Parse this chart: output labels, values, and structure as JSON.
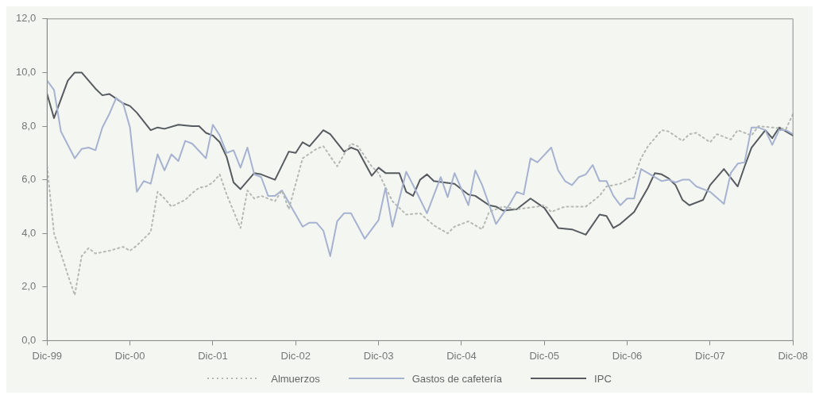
{
  "chart_data": {
    "type": "line",
    "legend": "bottom",
    "grid": false,
    "marker": "none",
    "xlim": [
      "1999-12",
      "2008-12"
    ],
    "xticks": [
      {
        "value": "1999-12",
        "label": "Dic-99"
      },
      {
        "value": "2000-12",
        "label": "Dic-00"
      },
      {
        "value": "2001-12",
        "label": "Dic-01"
      },
      {
        "value": "2002-12",
        "label": "Dic-02"
      },
      {
        "value": "2003-12",
        "label": "Dic-03"
      },
      {
        "value": "2004-12",
        "label": "Dic-04"
      },
      {
        "value": "2005-12",
        "label": "Dic-05"
      },
      {
        "value": "2006-12",
        "label": "Dic-06"
      },
      {
        "value": "2007-12",
        "label": "Dic-07"
      },
      {
        "value": "2008-12",
        "label": "Dic-08"
      }
    ],
    "ylim": [
      0,
      12
    ],
    "yticks": [
      {
        "value": 0,
        "label": "0,0"
      },
      {
        "value": 2,
        "label": "2,0"
      },
      {
        "value": 4,
        "label": "4,0"
      },
      {
        "value": 6,
        "label": "6,0"
      },
      {
        "value": 8,
        "label": "8,0"
      },
      {
        "value": 10,
        "label": "10,0"
      },
      {
        "value": 12,
        "label": "12,0"
      }
    ],
    "series": [
      {
        "name": "Almuerzos",
        "color": "#b4b9b4",
        "line_style": "dotted",
        "x": [
          "1999-12",
          "2000-01",
          "2000-02",
          "2000-03",
          "2000-04",
          "2000-05",
          "2000-06",
          "2000-07",
          "2000-09",
          "2000-11",
          "2000-12",
          "2001-01",
          "2001-03",
          "2001-04",
          "2001-05",
          "2001-06",
          "2001-08",
          "2001-09",
          "2001-10",
          "2001-11",
          "2001-12",
          "2002-01",
          "2002-02",
          "2002-04",
          "2002-05",
          "2002-06",
          "2002-07",
          "2002-09",
          "2002-10",
          "2002-11",
          "2003-01",
          "2003-03",
          "2003-04",
          "2003-06",
          "2003-07",
          "2003-08",
          "2003-09",
          "2003-11",
          "2003-12",
          "2004-02",
          "2004-04",
          "2004-06",
          "2004-08",
          "2004-10",
          "2004-11",
          "2005-01",
          "2005-03",
          "2005-04",
          "2005-06",
          "2005-08",
          "2005-11",
          "2005-12",
          "2006-01",
          "2006-03",
          "2006-05",
          "2006-06",
          "2006-08",
          "2006-09",
          "2006-11",
          "2007-01",
          "2007-02",
          "2007-03",
          "2007-05",
          "2007-06",
          "2007-08",
          "2007-09",
          "2007-10",
          "2007-12",
          "2008-01",
          "2008-03",
          "2008-04",
          "2008-06",
          "2008-07",
          "2008-09",
          "2008-11",
          "2008-12"
        ],
        "values": [
          6.5,
          4.0,
          3.25,
          2.45,
          1.7,
          3.15,
          3.45,
          3.25,
          3.35,
          3.5,
          3.35,
          3.55,
          4.05,
          5.55,
          5.3,
          5.0,
          5.25,
          5.5,
          5.7,
          5.75,
          5.9,
          6.2,
          5.45,
          4.2,
          5.6,
          5.3,
          5.4,
          5.2,
          5.6,
          4.9,
          6.8,
          7.15,
          7.25,
          6.5,
          6.95,
          7.35,
          7.25,
          6.5,
          6.25,
          5.2,
          4.7,
          4.75,
          4.3,
          4.0,
          4.25,
          4.45,
          4.15,
          4.8,
          5.0,
          4.9,
          5.0,
          5.05,
          4.8,
          5.0,
          5.0,
          5.0,
          5.4,
          5.75,
          5.85,
          6.1,
          6.8,
          7.25,
          7.85,
          7.8,
          7.45,
          7.7,
          7.75,
          7.4,
          7.7,
          7.5,
          7.85,
          7.65,
          8.0,
          7.95,
          7.9,
          8.45
        ]
      },
      {
        "name": "Gastos de cafetería",
        "color": "#a6b2d0",
        "line_style": "solid",
        "x": [
          "1999-12",
          "2000-01",
          "2000-02",
          "2000-04",
          "2000-05",
          "2000-06",
          "2000-07",
          "2000-08",
          "2000-09",
          "2000-10",
          "2000-11",
          "2000-12",
          "2001-01",
          "2001-02",
          "2001-03",
          "2001-04",
          "2001-05",
          "2001-06",
          "2001-07",
          "2001-08",
          "2001-09",
          "2001-11",
          "2001-12",
          "2002-01",
          "2002-02",
          "2002-03",
          "2002-04",
          "2002-05",
          "2002-06",
          "2002-07",
          "2002-08",
          "2002-09",
          "2002-10",
          "2003-01",
          "2003-02",
          "2003-03",
          "2003-04",
          "2003-05",
          "2003-06",
          "2003-07",
          "2003-08",
          "2003-10",
          "2003-12",
          "2004-01",
          "2004-02",
          "2004-04",
          "2004-05",
          "2004-07",
          "2004-09",
          "2004-10",
          "2004-11",
          "2005-01",
          "2005-02",
          "2005-03",
          "2005-05",
          "2005-07",
          "2005-08",
          "2005-09",
          "2005-10",
          "2005-11",
          "2006-01",
          "2006-02",
          "2006-03",
          "2006-04",
          "2006-05",
          "2006-06",
          "2006-07",
          "2006-08",
          "2006-09",
          "2006-10",
          "2006-11",
          "2006-12",
          "2007-01",
          "2007-02",
          "2007-05",
          "2007-06",
          "2007-07",
          "2007-08",
          "2007-09",
          "2007-10",
          "2007-12",
          "2008-02",
          "2008-03",
          "2008-04",
          "2008-05",
          "2008-06",
          "2008-07",
          "2008-08",
          "2008-09",
          "2008-10",
          "2008-11",
          "2008-12"
        ],
        "values": [
          9.7,
          9.35,
          7.8,
          6.8,
          7.15,
          7.2,
          7.1,
          7.95,
          8.45,
          9.05,
          8.85,
          7.95,
          5.55,
          5.95,
          5.85,
          6.95,
          6.35,
          6.95,
          6.7,
          7.45,
          7.35,
          6.8,
          8.05,
          7.65,
          7.0,
          7.1,
          6.45,
          7.2,
          6.2,
          6.1,
          5.4,
          5.4,
          5.6,
          4.25,
          4.4,
          4.4,
          4.1,
          3.15,
          4.45,
          4.75,
          4.75,
          3.8,
          4.5,
          5.7,
          4.25,
          6.3,
          5.8,
          4.75,
          6.1,
          5.35,
          6.25,
          5.05,
          6.35,
          5.8,
          4.35,
          5.1,
          5.55,
          5.45,
          6.8,
          6.65,
          7.2,
          6.35,
          5.95,
          5.8,
          6.1,
          6.2,
          6.55,
          5.95,
          5.95,
          5.4,
          5.05,
          5.3,
          5.3,
          6.4,
          5.95,
          6.0,
          5.9,
          6.0,
          6.0,
          5.75,
          5.55,
          5.1,
          6.25,
          6.6,
          6.65,
          7.95,
          7.95,
          7.85,
          7.3,
          7.85,
          7.85,
          7.7
        ]
      },
      {
        "name": "IPC",
        "color": "#565b60",
        "line_style": "solid",
        "x": [
          "1999-12",
          "2000-01",
          "2000-03",
          "2000-04",
          "2000-05",
          "2000-07",
          "2000-08",
          "2000-09",
          "2000-11",
          "2000-12",
          "2001-01",
          "2001-03",
          "2001-04",
          "2001-05",
          "2001-07",
          "2001-09",
          "2001-10",
          "2001-11",
          "2001-12",
          "2002-01",
          "2002-02",
          "2002-03",
          "2002-04",
          "2002-06",
          "2002-07",
          "2002-09",
          "2002-11",
          "2002-12",
          "2003-01",
          "2003-02",
          "2003-04",
          "2003-05",
          "2003-07",
          "2003-08",
          "2003-09",
          "2003-11",
          "2003-12",
          "2004-01",
          "2004-03",
          "2004-04",
          "2004-05",
          "2004-06",
          "2004-07",
          "2004-08",
          "2004-11",
          "2005-01",
          "2005-02",
          "2005-04",
          "2005-05",
          "2005-06",
          "2005-08",
          "2005-10",
          "2005-12",
          "2006-02",
          "2006-04",
          "2006-06",
          "2006-08",
          "2006-09",
          "2006-10",
          "2006-11",
          "2007-01",
          "2007-03",
          "2007-04",
          "2007-05",
          "2007-06",
          "2007-07",
          "2007-08",
          "2007-09",
          "2007-11",
          "2007-12",
          "2008-02",
          "2008-04",
          "2008-05",
          "2008-06",
          "2008-08",
          "2008-09",
          "2008-10",
          "2008-12"
        ],
        "values": [
          9.2,
          8.3,
          9.7,
          10.0,
          10.0,
          9.4,
          9.15,
          9.2,
          8.85,
          8.75,
          8.5,
          7.85,
          7.95,
          7.9,
          8.05,
          8.0,
          8.0,
          7.75,
          7.65,
          7.4,
          6.85,
          5.9,
          5.65,
          6.25,
          6.2,
          6.0,
          7.05,
          7.0,
          7.4,
          7.25,
          7.85,
          7.7,
          7.05,
          7.2,
          7.1,
          6.15,
          6.45,
          6.25,
          6.25,
          5.55,
          5.4,
          6.0,
          6.2,
          5.95,
          5.85,
          5.45,
          5.4,
          5.05,
          5.0,
          4.85,
          4.9,
          5.3,
          4.95,
          4.2,
          4.15,
          3.95,
          4.7,
          4.65,
          4.2,
          4.35,
          4.8,
          5.7,
          6.25,
          6.2,
          6.05,
          5.8,
          5.25,
          5.05,
          5.25,
          5.8,
          6.4,
          5.75,
          6.5,
          7.2,
          7.85,
          7.55,
          7.95,
          7.65
        ]
      }
    ]
  }
}
